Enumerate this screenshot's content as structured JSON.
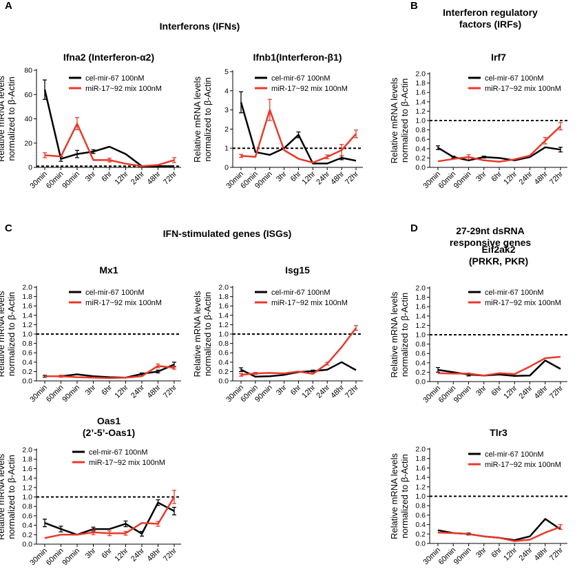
{
  "panel_letters": {
    "a": "A",
    "b": "B",
    "c": "C",
    "d": "D"
  },
  "section_titles": {
    "a": "Interferons (IFNs)",
    "b_line1": "Interferon regulatory",
    "b_line2": "factors (IRFs)",
    "c": "IFN-stimulated genes (ISGs)",
    "d_line1": "27-29nt dsRNA",
    "d_line2": "responsive genes"
  },
  "colors": {
    "control": "#000000",
    "treatment": "#e8392a"
  },
  "shared": {
    "ylabel_line1": "Relative mRNA levels",
    "ylabel_line2": "normalized to β-Actin",
    "categories": [
      "30min",
      "60min",
      "90min",
      "3hr",
      "6hr",
      "12hr",
      "24hr",
      "48hr",
      "72hr"
    ],
    "legend": [
      "cel-mir-67 100nM",
      "miR-17~92 mix 100nM"
    ]
  },
  "chart_data": [
    {
      "id": "ifna2",
      "type": "line",
      "title": [
        "Ifna2 (Interferon-α2)"
      ],
      "ylim": [
        0,
        80
      ],
      "yticks": [
        0,
        20,
        40,
        60,
        80
      ],
      "reference_line": 1,
      "categories": [
        "30min",
        "60min",
        "90min",
        "3hr",
        "6hr",
        "12hr",
        "24hr",
        "48hr",
        "72hr"
      ],
      "series": [
        {
          "name": "cel-mir-67 100nM",
          "color": "#000000",
          "values": [
            64,
            7,
            11,
            13,
            17,
            11,
            1,
            1,
            1
          ],
          "errors": [
            8,
            2,
            3,
            1.5,
            0,
            0,
            0,
            0,
            0
          ]
        },
        {
          "name": "miR-17~92 mix 100nM",
          "color": "#e8392a",
          "values": [
            10,
            9,
            36,
            6,
            6,
            3,
            1,
            2,
            6
          ],
          "errors": [
            2,
            0,
            5,
            0,
            1.5,
            0,
            0,
            0,
            2
          ]
        }
      ]
    },
    {
      "id": "ifnb1",
      "type": "line",
      "title": [
        "Ifnb1(Interferon-β1)"
      ],
      "ylim": [
        0,
        5
      ],
      "yticks": [
        0,
        1,
        2,
        3,
        4,
        5
      ],
      "reference_line": 1,
      "categories": [
        "30min",
        "60min",
        "90min",
        "3hr",
        "6hr",
        "12hr",
        "24hr",
        "48hr",
        "72hr"
      ],
      "series": [
        {
          "name": "cel-mir-67 100nM",
          "color": "#000000",
          "values": [
            3.4,
            0.8,
            0.65,
            1.0,
            1.7,
            0.2,
            0.2,
            0.5,
            0.35
          ],
          "errors": [
            0.55,
            0,
            0,
            0,
            0.15,
            0,
            0,
            0.1,
            0
          ]
        },
        {
          "name": "miR-17~92 mix 100nM",
          "color": "#e8392a",
          "values": [
            0.6,
            0.55,
            3.0,
            0.9,
            0.45,
            0.25,
            0.55,
            0.9,
            1.75
          ],
          "errors": [
            0.08,
            0,
            0.55,
            0,
            0,
            0,
            0.1,
            0.3,
            0.2
          ]
        }
      ]
    },
    {
      "id": "irf7",
      "type": "line",
      "title": [
        "Irf7"
      ],
      "ylim": [
        0,
        2
      ],
      "yticks": [
        0,
        0.2,
        0.4,
        0.6,
        0.8,
        1.0,
        1.2,
        1.4,
        1.6,
        1.8,
        2.0
      ],
      "reference_line": 1,
      "categories": [
        "30min",
        "60min",
        "90min",
        "3hr",
        "6hr",
        "12hr",
        "24hr",
        "48hr",
        "72hr"
      ],
      "series": [
        {
          "name": "cel-mir-67 100nM",
          "color": "#000000",
          "values": [
            0.42,
            0.22,
            0.15,
            0.22,
            0.2,
            0.15,
            0.22,
            0.43,
            0.38
          ],
          "errors": [
            0.04,
            0.02,
            0,
            0.02,
            0,
            0,
            0,
            0,
            0.05
          ]
        },
        {
          "name": "miR-17~92 mix 100nM",
          "color": "#e8392a",
          "values": [
            0.13,
            0.18,
            0.22,
            0.15,
            0.12,
            0.17,
            0.25,
            0.57,
            0.88
          ],
          "errors": [
            0,
            0,
            0.05,
            0,
            0,
            0,
            0,
            0.07,
            0.08
          ]
        }
      ]
    },
    {
      "id": "mx1",
      "type": "line",
      "title": [
        "Mx1"
      ],
      "ylim": [
        0,
        2
      ],
      "yticks": [
        0,
        0.2,
        0.4,
        0.6,
        0.8,
        1.0,
        1.2,
        1.4,
        1.6,
        1.8,
        2.0
      ],
      "reference_line": 1,
      "categories": [
        "30min",
        "60min",
        "90min",
        "3hr",
        "6hr",
        "12hr",
        "24hr",
        "48hr",
        "72hr"
      ],
      "series": [
        {
          "name": "cel-mir-67 100nM",
          "color": "#000000",
          "values": [
            0.1,
            0.1,
            0.14,
            0.1,
            0.08,
            0.07,
            0.15,
            0.2,
            0.35
          ],
          "errors": [
            0.02,
            0.02,
            0,
            0,
            0,
            0,
            0.02,
            0.03,
            0.05
          ]
        },
        {
          "name": "miR-17~92 mix 100nM",
          "color": "#e8392a",
          "values": [
            0.1,
            0.1,
            0.08,
            0.07,
            0.06,
            0.07,
            0.1,
            0.32,
            0.28
          ],
          "errors": [
            0,
            0.02,
            0,
            0,
            0,
            0,
            0,
            0.04,
            0.03
          ]
        }
      ]
    },
    {
      "id": "isg15",
      "type": "line",
      "title": [
        "Isg15"
      ],
      "ylim": [
        0,
        2
      ],
      "yticks": [
        0,
        0.2,
        0.4,
        0.6,
        0.8,
        1.0,
        1.2,
        1.4,
        1.6,
        1.8,
        2.0
      ],
      "reference_line": 1,
      "categories": [
        "30min",
        "60min",
        "90min",
        "3hr",
        "6hr",
        "12hr",
        "24hr",
        "48hr",
        "72hr"
      ],
      "series": [
        {
          "name": "cel-mir-67 100nM",
          "color": "#000000",
          "values": [
            0.24,
            0.09,
            0.1,
            0.13,
            0.19,
            0.21,
            0.24,
            0.4,
            0.23
          ],
          "errors": [
            0.04,
            0,
            0,
            0,
            0,
            0.02,
            0,
            0,
            0
          ]
        },
        {
          "name": "miR-17~92 mix 100nM",
          "color": "#e8392a",
          "values": [
            0.13,
            0.16,
            0.17,
            0.16,
            0.2,
            0.15,
            0.37,
            0.72,
            1.13
          ],
          "errors": [
            0.03,
            0.02,
            0,
            0,
            0,
            0,
            0.03,
            0,
            0.05
          ]
        }
      ]
    },
    {
      "id": "eif2ak2",
      "type": "line",
      "title": [
        "Eif2ak2",
        "(PRKR, PKR)"
      ],
      "ylim": [
        0,
        2
      ],
      "yticks": [
        0,
        0.2,
        0.4,
        0.6,
        0.8,
        1.0,
        1.2,
        1.4,
        1.6,
        1.8,
        2.0
      ],
      "reference_line": 1,
      "categories": [
        "30min",
        "60min",
        "90min",
        "3hr",
        "6hr",
        "12hr",
        "24hr",
        "48hr",
        "72hr"
      ],
      "series": [
        {
          "name": "cel-mir-67 100nM",
          "color": "#000000",
          "values": [
            0.25,
            0.2,
            0.15,
            0.13,
            0.15,
            0.12,
            0.13,
            0.45,
            0.27
          ],
          "errors": [
            0.05,
            0,
            0.03,
            0,
            0,
            0,
            0,
            0,
            0
          ]
        },
        {
          "name": "miR-17~92 mix 100nM",
          "color": "#e8392a",
          "values": [
            0.18,
            0.17,
            0.17,
            0.13,
            0.18,
            0.16,
            0.32,
            0.5,
            0.53
          ],
          "errors": [
            0,
            0,
            0,
            0,
            0,
            0,
            0,
            0,
            0
          ]
        }
      ]
    },
    {
      "id": "oas1",
      "type": "line",
      "title": [
        "Oas1",
        "(2’-5’-Oas1)"
      ],
      "ylim": [
        0,
        2
      ],
      "yticks": [
        0,
        0.2,
        0.4,
        0.6,
        0.8,
        1.0,
        1.2,
        1.4,
        1.6,
        1.8,
        2.0
      ],
      "reference_line": 1,
      "categories": [
        "30min",
        "60min",
        "90min",
        "3hr",
        "6hr",
        "12hr",
        "24hr",
        "48hr",
        "72hr"
      ],
      "series": [
        {
          "name": "cel-mir-67 100nM",
          "color": "#000000",
          "values": [
            0.45,
            0.32,
            0.2,
            0.32,
            0.32,
            0.43,
            0.22,
            0.88,
            0.7
          ],
          "errors": [
            0.08,
            0.06,
            0,
            0.04,
            0,
            0.06,
            0.05,
            0.06,
            0.08
          ]
        },
        {
          "name": "miR-17~92 mix 100nM",
          "color": "#e8392a",
          "values": [
            0.13,
            0.2,
            0.2,
            0.25,
            0.23,
            0.23,
            0.45,
            0.43,
            1.0
          ],
          "errors": [
            0,
            0,
            0,
            0.05,
            0.05,
            0.04,
            0,
            0.05,
            0.14
          ]
        }
      ]
    },
    {
      "id": "tlr3",
      "type": "line",
      "title": [
        "Tlr3"
      ],
      "ylim": [
        0,
        2
      ],
      "yticks": [
        0,
        0.2,
        0.4,
        0.6,
        0.8,
        1.0,
        1.2,
        1.4,
        1.6,
        1.8,
        2.0
      ],
      "reference_line": 1,
      "categories": [
        "30min",
        "60min",
        "90min",
        "3hr",
        "6hr",
        "12hr",
        "24hr",
        "48hr",
        "72hr"
      ],
      "series": [
        {
          "name": "cel-mir-67 100nM",
          "color": "#000000",
          "values": [
            0.28,
            0.22,
            0.2,
            0.15,
            0.12,
            0.07,
            0.15,
            0.52,
            0.3
          ],
          "errors": [
            0,
            0,
            0.02,
            0,
            0,
            0,
            0,
            0,
            0
          ]
        },
        {
          "name": "miR-17~92 mix 100nM",
          "color": "#e8392a",
          "values": [
            0.23,
            0.22,
            0.2,
            0.15,
            0.12,
            0.05,
            0.08,
            0.23,
            0.35
          ],
          "errors": [
            0,
            0,
            0,
            0,
            0,
            0,
            0,
            0,
            0.05
          ]
        }
      ]
    }
  ]
}
